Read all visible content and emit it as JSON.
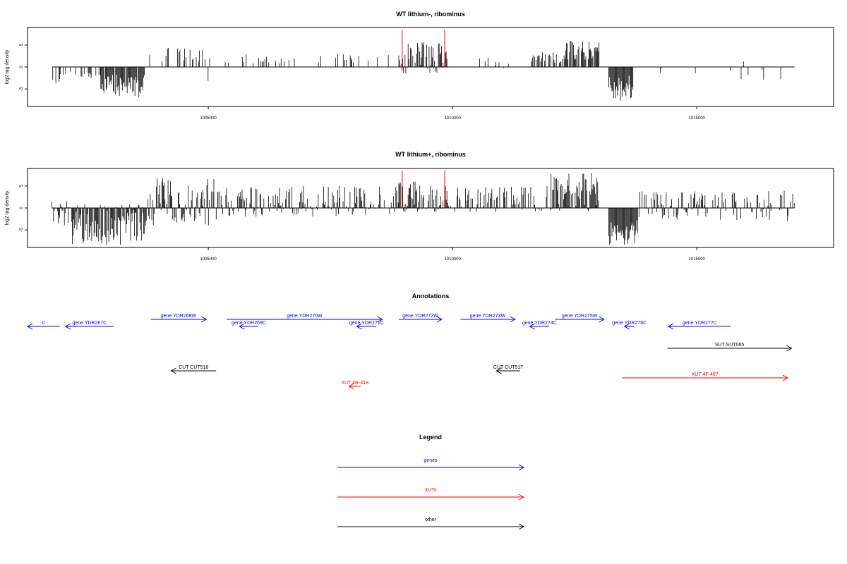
{
  "chart_data": [
    {
      "type": "bar",
      "title": "WT lithium-, ribominus",
      "ylabel": "log2 tag density",
      "xlabel": "",
      "xlim": [
        1001300,
        1017800
      ],
      "ylim": [
        -9,
        9
      ],
      "xticks": [
        1005000,
        1010000,
        1015000
      ],
      "yticks": [
        -5,
        0,
        5
      ],
      "grid": false,
      "markers": [
        1008970,
        1009840
      ],
      "marker_color": "#ff0000",
      "profile": [
        {
          "x0": 1001800,
          "x1": 1002000,
          "min": -4,
          "max": 0,
          "density": 0.6
        },
        {
          "x0": 1002000,
          "x1": 1002800,
          "min": -3,
          "max": 0,
          "density": 0.3
        },
        {
          "x0": 1002800,
          "x1": 1003700,
          "min": -7,
          "max": 0,
          "density": 0.95
        },
        {
          "x0": 1003800,
          "x1": 1004900,
          "min": 0,
          "max": 4.5,
          "density": 0.3
        },
        {
          "x0": 1004900,
          "x1": 1005200,
          "min": -4,
          "max": 3,
          "density": 0.4
        },
        {
          "x0": 1005300,
          "x1": 1008900,
          "min": 0,
          "max": 3,
          "density": 0.12
        },
        {
          "x0": 1008900,
          "x1": 1009900,
          "min": -1.5,
          "max": 6,
          "density": 0.75
        },
        {
          "x0": 1010300,
          "x1": 1011300,
          "min": -1.5,
          "max": 2.5,
          "density": 0.1
        },
        {
          "x0": 1011600,
          "x1": 1012300,
          "min": 0,
          "max": 3.5,
          "density": 0.5
        },
        {
          "x0": 1012300,
          "x1": 1013000,
          "min": 0,
          "max": 6,
          "density": 0.85
        },
        {
          "x0": 1013200,
          "x1": 1013700,
          "min": -8,
          "max": 0,
          "density": 1.0
        },
        {
          "x0": 1014000,
          "x1": 1017000,
          "min": -3,
          "max": 3,
          "density": 0.05
        }
      ]
    },
    {
      "type": "bar",
      "title": "WT lithium+, ribominus",
      "ylabel": "log2 tag density",
      "xlabel": "",
      "xlim": [
        1001300,
        1017800
      ],
      "ylim": [
        -9,
        9
      ],
      "xticks": [
        1005000,
        1010000,
        1015000
      ],
      "yticks": [
        -5,
        0,
        5
      ],
      "grid": false,
      "markers": [
        1008970,
        1009840
      ],
      "marker_color": "#ff0000",
      "profile": [
        {
          "x0": 1001800,
          "x1": 1002200,
          "min": -4,
          "max": 2,
          "density": 0.7
        },
        {
          "x0": 1002200,
          "x1": 1003700,
          "min": -8.5,
          "max": 1,
          "density": 0.95
        },
        {
          "x0": 1003700,
          "x1": 1005200,
          "min": -4,
          "max": 7,
          "density": 0.8
        },
        {
          "x0": 1005200,
          "x1": 1008900,
          "min": -2,
          "max": 5,
          "density": 0.6
        },
        {
          "x0": 1008900,
          "x1": 1009900,
          "min": -1,
          "max": 6,
          "density": 0.9
        },
        {
          "x0": 1009900,
          "x1": 1012000,
          "min": -1,
          "max": 5,
          "density": 0.55
        },
        {
          "x0": 1012000,
          "x1": 1013000,
          "min": -1,
          "max": 8,
          "density": 0.9
        },
        {
          "x0": 1013200,
          "x1": 1013800,
          "min": -8.5,
          "max": 0,
          "density": 1.0
        },
        {
          "x0": 1013800,
          "x1": 1017000,
          "min": -3,
          "max": 4,
          "density": 0.5
        }
      ]
    }
  ],
  "annotations": {
    "title": "Annotations",
    "features": [
      {
        "label": "C",
        "x0": 1001300,
        "x1": 1001960,
        "strand": "-",
        "row": 1,
        "color": "#0000ff"
      },
      {
        "label": "gene YDR267C",
        "x0": 1002080,
        "x1": 1003060,
        "strand": "-",
        "row": 1,
        "color": "#0000ff"
      },
      {
        "label": "gene YDR268W",
        "x0": 1003820,
        "x1": 1004960,
        "strand": "+",
        "row": 0,
        "color": "#0000ff"
      },
      {
        "label": "gene YDR269C",
        "x0": 1005640,
        "x1": 1006020,
        "strand": "-",
        "row": 1,
        "color": "#0000ff"
      },
      {
        "label": "gene YDR270W",
        "x0": 1005380,
        "x1": 1008560,
        "strand": "+",
        "row": 0,
        "color": "#0000ff"
      },
      {
        "label": "gene YDR271C",
        "x0": 1008040,
        "x1": 1008440,
        "strand": "-",
        "row": 1,
        "color": "#0000ff"
      },
      {
        "label": "gene YDR272W",
        "x0": 1008900,
        "x1": 1009780,
        "strand": "+",
        "row": 0,
        "color": "#0000ff"
      },
      {
        "label": "gene YDR273W",
        "x0": 1010160,
        "x1": 1011280,
        "strand": "+",
        "row": 0,
        "color": "#0000ff"
      },
      {
        "label": "gene YDR274C",
        "x0": 1011580,
        "x1": 1011980,
        "strand": "-",
        "row": 1,
        "color": "#0000ff"
      },
      {
        "label": "gene YDR275W",
        "x0": 1012100,
        "x1": 1013100,
        "strand": "+",
        "row": 0,
        "color": "#0000ff"
      },
      {
        "label": "gene YDR276C",
        "x0": 1013520,
        "x1": 1013720,
        "strand": "-",
        "row": 1,
        "color": "#0000ff"
      },
      {
        "label": "gene YDR277C",
        "x0": 1014420,
        "x1": 1015700,
        "strand": "-",
        "row": 1,
        "color": "#0000ff"
      },
      {
        "label": "SUT SUT065",
        "x0": 1014400,
        "x1": 1016940,
        "strand": "+",
        "row": 2,
        "color": "#000000"
      },
      {
        "label": "CUT CUT516",
        "x0": 1004240,
        "x1": 1005160,
        "strand": "-",
        "row": 3,
        "color": "#000000"
      },
      {
        "label": "CUT CUT517",
        "x0": 1010900,
        "x1": 1011380,
        "strand": "-",
        "row": 3,
        "color": "#000000"
      },
      {
        "label": "XUT 4F-467",
        "x0": 1013470,
        "x1": 1016860,
        "strand": "+",
        "row": 4,
        "color": "#ff0000"
      },
      {
        "label": "XUT 4R-418",
        "x0": 1007880,
        "x1": 1008120,
        "strand": "-",
        "row": 5,
        "color": "#ff0000"
      }
    ]
  },
  "legend": {
    "title": "Legend",
    "items": [
      {
        "label": "genes",
        "color": "#0000ff"
      },
      {
        "label": "XUTs",
        "color": "#ff0000"
      },
      {
        "label": "other",
        "color": "#000000"
      }
    ]
  }
}
